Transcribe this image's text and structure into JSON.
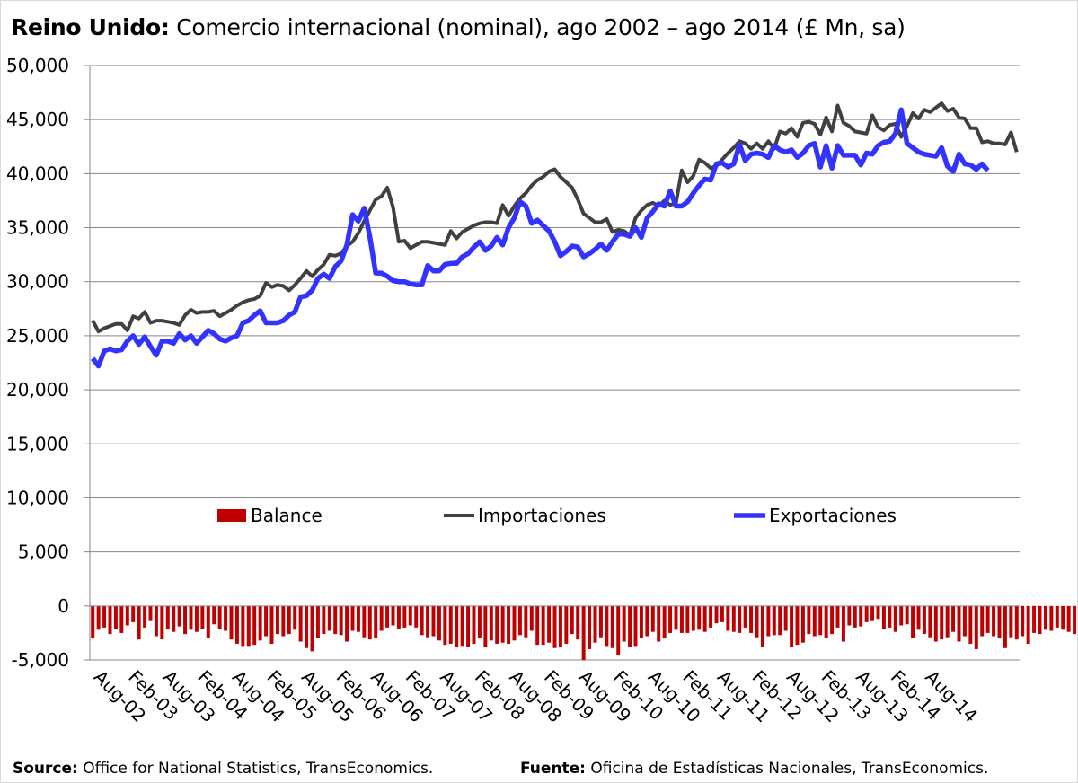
{
  "title_bold": "Reino Unido:",
  "title_rest": " Comercio internacional (nominal), ago 2002 – ago 2014 (£ Mn, sa)",
  "source_label": "Source:",
  "source_text": " Office for National Statistics, TransEconomics.",
  "fuente_label": "Fuente:",
  "fuente_text": " Oficina de Estadísticas Nacionales, TransEconomics.",
  "colors": {
    "balance": "#c00000",
    "imports": "#404040",
    "exports": "#3333ff",
    "grid": "#868686"
  },
  "chart_data": {
    "type": "line",
    "ylim": [
      -5000,
      50000
    ],
    "yticks": [
      -5000,
      0,
      5000,
      10000,
      15000,
      20000,
      25000,
      30000,
      35000,
      40000,
      45000,
      50000
    ],
    "ytick_labels": [
      "-5,000",
      "0",
      "5,000",
      "10,000",
      "15,000",
      "20,000",
      "25,000",
      "30,000",
      "35,000",
      "40,000",
      "45,000",
      "50,000"
    ],
    "x_labels": [
      "Aug-02",
      "Feb-03",
      "Aug-03",
      "Feb-04",
      "Aug-04",
      "Feb-05",
      "Aug-05",
      "Feb-06",
      "Aug-06",
      "Feb-07",
      "Aug-07",
      "Feb-08",
      "Aug-08",
      "Feb-09",
      "Aug-09",
      "Feb-10",
      "Aug-10",
      "Feb-11",
      "Aug-11",
      "Feb-12",
      "Aug-12",
      "Feb-13",
      "Aug-13",
      "Feb-14",
      "Aug-14"
    ],
    "grid": true,
    "legend_position": "center",
    "series": [
      {
        "name": "Balance",
        "kind": "bar",
        "values": [
          -3000,
          -2200,
          -2000,
          -2600,
          -2100,
          -2500,
          -1800,
          -1500,
          -3100,
          -2000,
          -1400,
          -2800,
          -3100,
          -2100,
          -2400,
          -1900,
          -2600,
          -2200,
          -2400,
          -2100,
          -3000,
          -1700,
          -2100,
          -2300,
          -3100,
          -3500,
          -3700,
          -3700,
          -3600,
          -3200,
          -2800,
          -3500,
          -2600,
          -2800,
          -2600,
          -2200,
          -3300,
          -3900,
          -4200,
          -3000,
          -2600,
          -2300,
          -2600,
          -2700,
          -3300,
          -2300,
          -2400,
          -2900,
          -3100,
          -3000,
          -2300,
          -2000,
          -1800,
          -2100,
          -2000,
          -1800,
          -2000,
          -2700,
          -2900,
          -2800,
          -3200,
          -3600,
          -3500,
          -3800,
          -3700,
          -3800,
          -3500,
          -3000,
          -3800,
          -3200,
          -3500,
          -3400,
          -3500,
          -3200,
          -2700,
          -2900,
          -2300,
          -3600,
          -3600,
          -3400,
          -3900,
          -3800,
          -3500,
          -2600,
          -3100,
          -5000,
          -4000,
          -3400,
          -2900,
          -3700,
          -3900,
          -4500,
          -3300,
          -3800,
          -3700,
          -3000,
          -2800,
          -2400,
          -3300,
          -3000,
          -2500,
          -2200,
          -2500,
          -2500,
          -2300,
          -2200,
          -2400,
          -2000,
          -1600,
          -1500,
          -2300,
          -2400,
          -2500,
          -2000,
          -2500,
          -2900,
          -3800,
          -2800,
          -2700,
          -2700,
          -2300,
          -3800,
          -3600,
          -3400,
          -2600,
          -2800,
          -2700,
          -3000,
          -2600,
          -2000,
          -3300,
          -1800,
          -2000,
          -1900,
          -1500,
          -1400,
          -1200,
          -2100,
          -2000,
          -2400,
          -1800,
          -1700,
          -3000,
          -2200,
          -2600,
          -2900,
          -3300,
          -3100,
          -2900,
          -2400,
          -3300,
          -2800,
          -3500,
          -4000,
          -2800,
          -2500,
          -2800,
          -3000,
          -3900,
          -2900,
          -3100,
          -2800,
          -3500,
          -2500,
          -2600,
          -2200,
          -2300,
          -2000,
          -2200,
          -2400,
          -2600,
          -2300,
          -2600,
          -2600,
          -2100,
          -2200,
          0,
          -3400,
          -3500,
          -3300,
          -4000,
          -3400,
          -3300,
          -3000,
          -2300,
          -3500,
          -3200,
          -2600,
          -1600,
          -2400,
          -2100,
          -2600,
          -2200,
          -2100,
          -3000,
          -2300,
          -1800
        ]
      },
      {
        "name": "Importaciones",
        "kind": "line",
        "values": [
          26400,
          25400,
          25700,
          25900,
          26100,
          26100,
          25500,
          26800,
          26600,
          27200,
          26200,
          26400,
          26400,
          26300,
          26200,
          26000,
          26900,
          27400,
          27100,
          27200,
          27200,
          27300,
          26800,
          27100,
          27400,
          27800,
          28100,
          28300,
          28400,
          28700,
          29900,
          29500,
          29700,
          29600,
          29200,
          29700,
          30300,
          31000,
          30500,
          31100,
          31600,
          32500,
          32400,
          32600,
          33300,
          33700,
          34500,
          35600,
          36600,
          37600,
          37900,
          38700,
          36900,
          33700,
          33800,
          33100,
          33400,
          33700,
          33700,
          33600,
          33500,
          33400,
          34700,
          34000,
          34600,
          34900,
          35200,
          35400,
          35500,
          35500,
          35400,
          37100,
          36100,
          37000,
          37700,
          38200,
          38900,
          39400,
          39700,
          40200,
          40400,
          39700,
          39200,
          38700,
          37600,
          36300,
          35900,
          35500,
          35500,
          35800,
          34600,
          34800,
          34700,
          34300,
          35900,
          36600,
          37100,
          37300,
          37000,
          37500,
          37100,
          37300,
          40300,
          39200,
          39800,
          41300,
          41000,
          40500,
          40700,
          41300,
          41900,
          42400,
          43000,
          42800,
          42300,
          42800,
          42300,
          43000,
          42300,
          43900,
          43700,
          44200,
          43400,
          44700,
          44800,
          44600,
          43600,
          45200,
          43900,
          46300,
          44700,
          44400,
          43900,
          43800,
          43700,
          45400,
          44300,
          44000,
          44500,
          44600,
          43400,
          44400,
          45600,
          45100,
          45900,
          45700,
          46100,
          46500,
          45800,
          46000,
          45200,
          45100,
          44200,
          44200,
          42900,
          43000,
          42800,
          42800,
          42700,
          43800,
          42000
        ]
      },
      {
        "name": "Exportaciones",
        "kind": "line",
        "values": [
          22900,
          22200,
          23600,
          23800,
          23600,
          23700,
          24500,
          25000,
          24200,
          24900,
          24000,
          23200,
          24500,
          24500,
          24300,
          25200,
          24600,
          25000,
          24300,
          24900,
          25500,
          25200,
          24700,
          24500,
          24800,
          25000,
          26200,
          26400,
          26900,
          27300,
          26200,
          26200,
          26200,
          26400,
          26900,
          27200,
          28600,
          28700,
          29200,
          30300,
          30700,
          30300,
          31400,
          31900,
          33400,
          36200,
          35600,
          36800,
          34100,
          30800,
          30800,
          30500,
          30100,
          30000,
          30000,
          29800,
          29700,
          29700,
          31500,
          31000,
          31000,
          31600,
          31700,
          31700,
          32300,
          32600,
          33200,
          33700,
          32900,
          33300,
          34100,
          33400,
          35000,
          35900,
          37400,
          37000,
          35400,
          35700,
          35200,
          34700,
          33700,
          32400,
          32800,
          33300,
          33200,
          32300,
          32600,
          33000,
          33500,
          32900,
          33700,
          34400,
          34400,
          34200,
          35000,
          34100,
          35900,
          36500,
          37200,
          37000,
          38400,
          37000,
          37000,
          37400,
          38200,
          38900,
          39500,
          39400,
          40900,
          41000,
          40600,
          40900,
          42700,
          41200,
          41800,
          41900,
          41800,
          41500,
          42600,
          42200,
          42000,
          42200,
          41500,
          41900,
          42600,
          42800,
          40600,
          42600,
          40500,
          42600,
          41700,
          41700,
          41700,
          40800,
          41900,
          41800,
          42600,
          42900,
          43000,
          43700,
          45900,
          42800,
          42400,
          42000,
          41800,
          41700,
          41600,
          42400,
          40700,
          40200,
          41800,
          40900,
          40800,
          40400,
          40900,
          40300
        ]
      }
    ]
  }
}
